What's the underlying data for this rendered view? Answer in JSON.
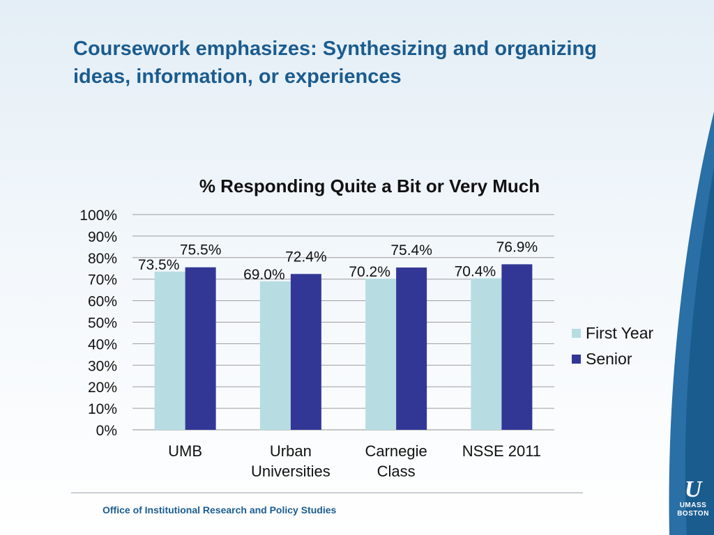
{
  "slide": {
    "title": "Coursework emphasizes: Synthesizing and organizing ideas, information, or experiences",
    "footer": "Office of Institutional Research and Policy Studies",
    "logo": {
      "mark": "U",
      "line1": "UMASS",
      "line2": "BOSTON"
    }
  },
  "colors": {
    "first_year": "#b7dde3",
    "senior": "#323796",
    "accent": "#1b5c8f"
  },
  "chart_data": {
    "type": "bar",
    "title": "% Responding Quite a Bit or Very Much",
    "categories": [
      "UMB",
      "Urban Universities",
      "Carnegie Class",
      "NSSE 2011"
    ],
    "category_lines": [
      [
        "UMB"
      ],
      [
        "Urban",
        "Universities"
      ],
      [
        "Carnegie",
        "Class"
      ],
      [
        "NSSE 2011"
      ]
    ],
    "series": [
      {
        "name": "First Year",
        "values": [
          73.5,
          69.0,
          70.2,
          70.4
        ],
        "labels": [
          "73.5%",
          "69.0%",
          "70.2%",
          "70.4%"
        ]
      },
      {
        "name": "Senior",
        "values": [
          75.5,
          72.4,
          75.4,
          76.9
        ],
        "labels": [
          "75.5%",
          "72.4%",
          "75.4%",
          "76.9%"
        ]
      }
    ],
    "ylim": [
      0,
      100
    ],
    "y_ticks": [
      "0%",
      "10%",
      "20%",
      "30%",
      "40%",
      "50%",
      "60%",
      "70%",
      "80%",
      "90%",
      "100%"
    ],
    "grid": true,
    "legend_position": "right"
  }
}
